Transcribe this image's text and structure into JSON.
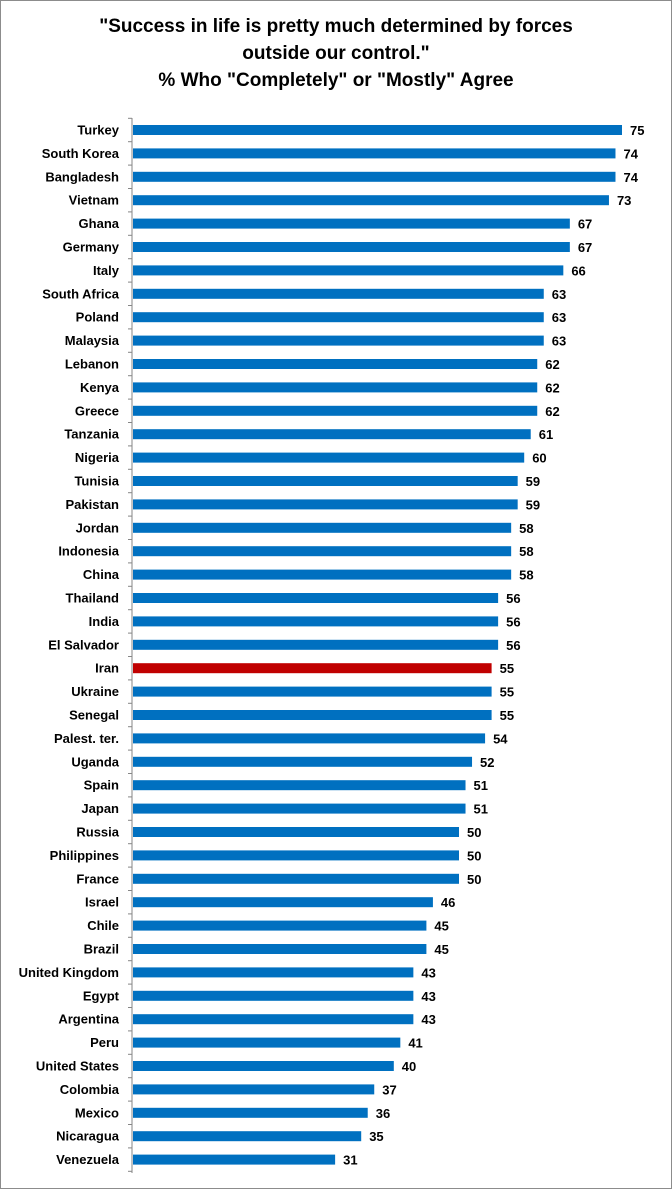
{
  "chart_data": {
    "type": "bar",
    "orientation": "horizontal",
    "title_lines": [
      "\"Success in life is pretty much determined by forces",
      "outside our control.\"",
      "% Who \"Completely\" or \"Mostly\" Agree"
    ],
    "categories": [
      "Turkey",
      "South Korea",
      "Bangladesh",
      "Vietnam",
      "Ghana",
      "Germany",
      "Italy",
      "South Africa",
      "Poland",
      "Malaysia",
      "Lebanon",
      "Kenya",
      "Greece",
      "Tanzania",
      "Nigeria",
      "Tunisia",
      "Pakistan",
      "Jordan",
      "Indonesia",
      "China",
      "Thailand",
      "India",
      "El Salvador",
      "Iran",
      "Ukraine",
      "Senegal",
      "Palest. ter.",
      "Uganda",
      "Spain",
      "Japan",
      "Russia",
      "Philippines",
      "France",
      "Israel",
      "Chile",
      "Brazil",
      "United Kingdom",
      "Egypt",
      "Argentina",
      "Peru",
      "United States",
      "Colombia",
      "Mexico",
      "Nicaragua",
      "Venezuela"
    ],
    "values": [
      75,
      74,
      74,
      73,
      67,
      67,
      66,
      63,
      63,
      63,
      62,
      62,
      62,
      61,
      60,
      59,
      59,
      58,
      58,
      58,
      56,
      56,
      56,
      55,
      55,
      55,
      54,
      52,
      51,
      51,
      50,
      50,
      50,
      46,
      45,
      45,
      43,
      43,
      43,
      41,
      40,
      37,
      36,
      35,
      31
    ],
    "highlight": "Iran",
    "colors": {
      "bar": "#0070c0",
      "highlight": "#c00000",
      "axis": "#868686"
    },
    "xlim": [
      0,
      75
    ],
    "data_labels": true,
    "grid": false,
    "legend": false
  }
}
